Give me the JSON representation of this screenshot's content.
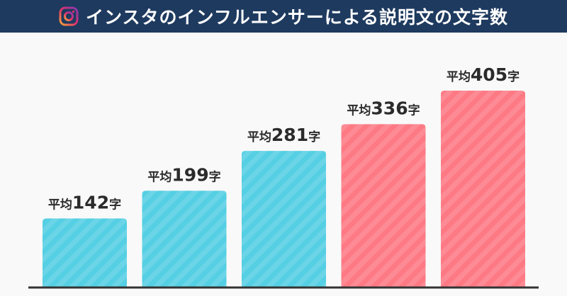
{
  "header": {
    "title": "インスタのインフルエンサーによる説明文の文字数",
    "icon": "instagram-icon"
  },
  "colors": {
    "header_bg": "#1e3a5f",
    "bar_blue": "#55cfe3",
    "bar_pink": "#fd7a85",
    "text": "#2b2b2b",
    "baseline": "#333333"
  },
  "chart_data": {
    "type": "bar",
    "title": "インスタのインフルエンサーによる説明文の文字数",
    "categories": [
      "",
      "",
      "",
      "",
      ""
    ],
    "values": [
      142,
      199,
      281,
      336,
      405
    ],
    "data_labels": [
      {
        "prefix": "平均",
        "value": "142",
        "suffix": "字"
      },
      {
        "prefix": "平均",
        "value": "199",
        "suffix": "字"
      },
      {
        "prefix": "平均",
        "value": "281",
        "suffix": "字"
      },
      {
        "prefix": "平均",
        "value": "336",
        "suffix": "字"
      },
      {
        "prefix": "平均",
        "value": "405",
        "suffix": "字"
      }
    ],
    "bar_colors": [
      "#55cfe3",
      "#55cfe3",
      "#55cfe3",
      "#fd7a85",
      "#fd7a85"
    ],
    "ylim": [
      0,
      405
    ],
    "grid": false,
    "legend": "none"
  }
}
